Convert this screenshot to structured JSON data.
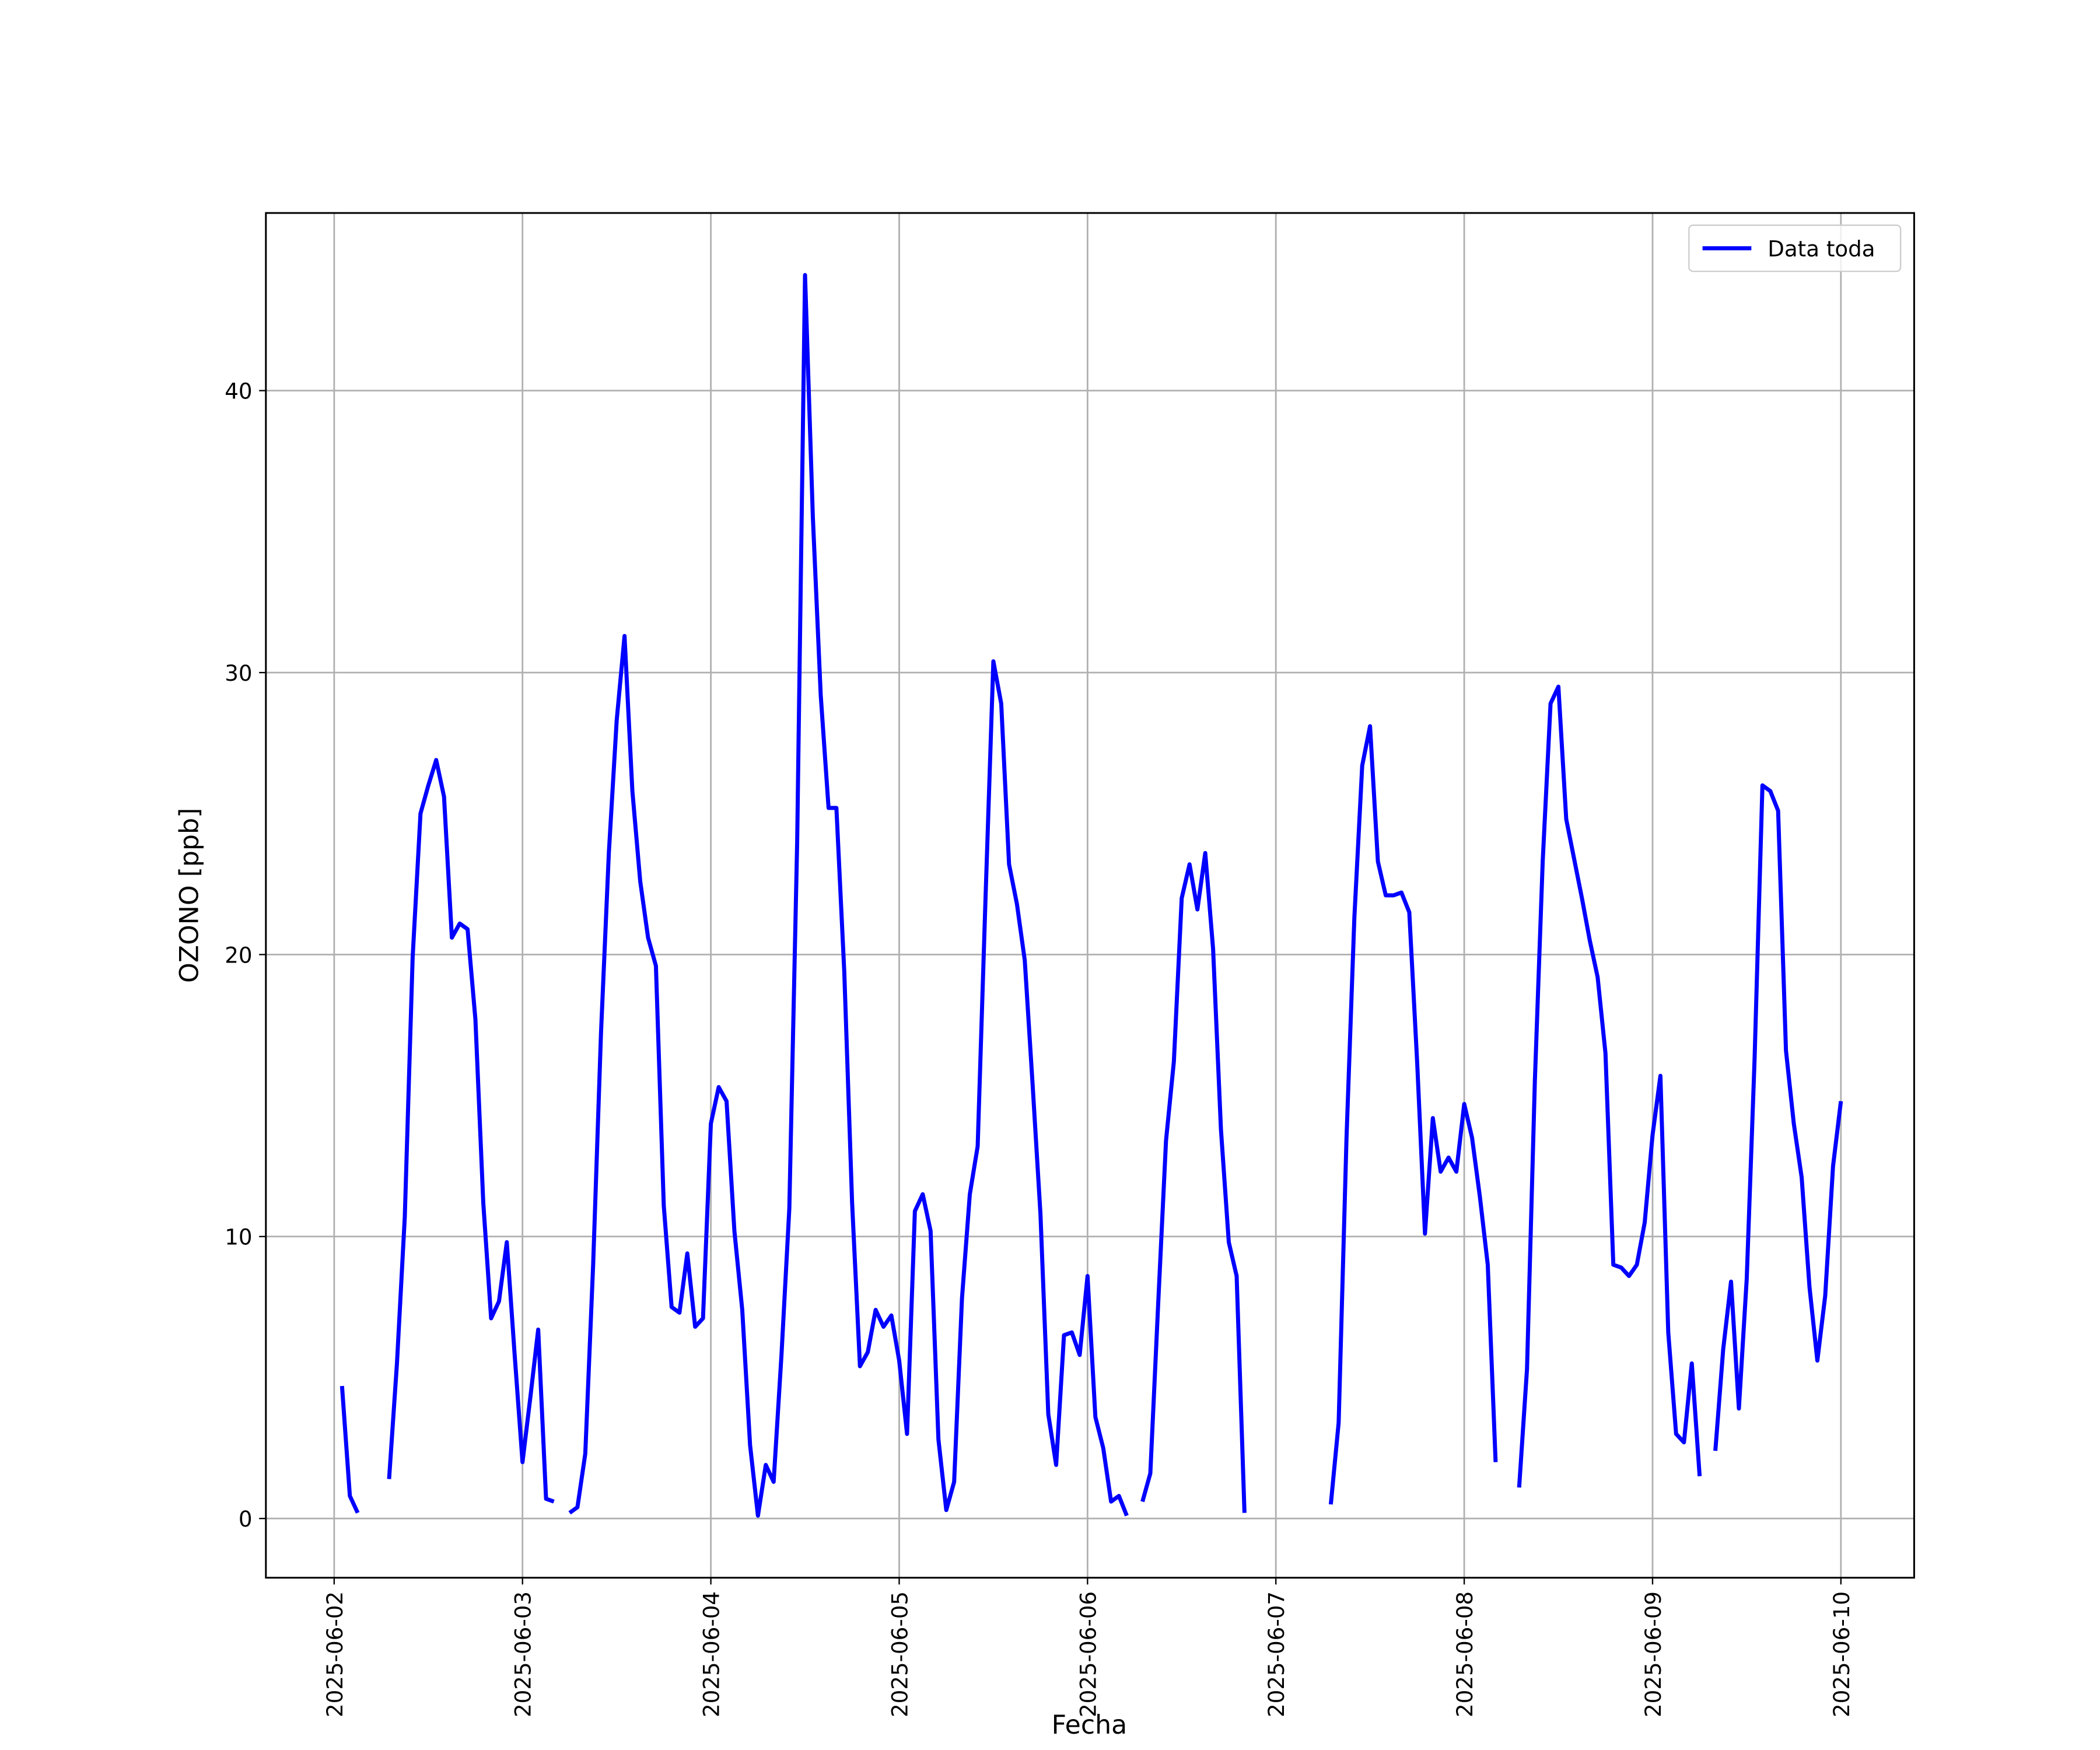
{
  "chart_data": {
    "type": "line",
    "xlabel": "Fecha",
    "ylabel": "OZONO [ppb]",
    "x": [
      "2025-06-02 01:00",
      "2025-06-02 02:00",
      "2025-06-02 03:00",
      "2025-06-02 04:00",
      "2025-06-02 05:00",
      "2025-06-02 06:00",
      "2025-06-02 07:00",
      "2025-06-02 08:00",
      "2025-06-02 09:00",
      "2025-06-02 10:00",
      "2025-06-02 11:00",
      "2025-06-02 12:00",
      "2025-06-02 13:00",
      "2025-06-02 14:00",
      "2025-06-02 15:00",
      "2025-06-02 16:00",
      "2025-06-02 17:00",
      "2025-06-02 18:00",
      "2025-06-02 19:00",
      "2025-06-02 20:00",
      "2025-06-02 21:00",
      "2025-06-02 22:00",
      "2025-06-02 23:00",
      "2025-06-03 00:00",
      "2025-06-03 01:00",
      "2025-06-03 02:00",
      "2025-06-03 03:00",
      "2025-06-03 04:00",
      "2025-06-03 05:00",
      "2025-06-03 06:00",
      "2025-06-03 07:00",
      "2025-06-03 08:00",
      "2025-06-03 09:00",
      "2025-06-03 10:00",
      "2025-06-03 11:00",
      "2025-06-03 12:00",
      "2025-06-03 13:00",
      "2025-06-03 14:00",
      "2025-06-03 15:00",
      "2025-06-03 16:00",
      "2025-06-03 17:00",
      "2025-06-03 18:00",
      "2025-06-03 19:00",
      "2025-06-03 20:00",
      "2025-06-03 21:00",
      "2025-06-03 22:00",
      "2025-06-03 23:00",
      "2025-06-04 00:00",
      "2025-06-04 01:00",
      "2025-06-04 02:00",
      "2025-06-04 03:00",
      "2025-06-04 04:00",
      "2025-06-04 05:00",
      "2025-06-04 06:00",
      "2025-06-04 07:00",
      "2025-06-04 08:00",
      "2025-06-04 09:00",
      "2025-06-04 10:00",
      "2025-06-04 11:00",
      "2025-06-04 12:00",
      "2025-06-04 13:00",
      "2025-06-04 14:00",
      "2025-06-04 15:00",
      "2025-06-04 16:00",
      "2025-06-04 17:00",
      "2025-06-04 18:00",
      "2025-06-04 19:00",
      "2025-06-04 20:00",
      "2025-06-04 21:00",
      "2025-06-04 22:00",
      "2025-06-04 23:00",
      "2025-06-05 00:00",
      "2025-06-05 01:00",
      "2025-06-05 02:00",
      "2025-06-05 03:00",
      "2025-06-05 04:00",
      "2025-06-05 05:00",
      "2025-06-05 06:00",
      "2025-06-05 07:00",
      "2025-06-05 08:00",
      "2025-06-05 09:00",
      "2025-06-05 10:00",
      "2025-06-05 11:00",
      "2025-06-05 12:00",
      "2025-06-05 13:00",
      "2025-06-05 14:00",
      "2025-06-05 15:00",
      "2025-06-05 16:00",
      "2025-06-05 17:00",
      "2025-06-05 18:00",
      "2025-06-05 19:00",
      "2025-06-05 20:00",
      "2025-06-05 21:00",
      "2025-06-05 22:00",
      "2025-06-05 23:00",
      "2025-06-06 00:00",
      "2025-06-06 01:00",
      "2025-06-06 02:00",
      "2025-06-06 03:00",
      "2025-06-06 04:00",
      "2025-06-06 05:00",
      "2025-06-06 06:00",
      "2025-06-06 07:00",
      "2025-06-06 08:00",
      "2025-06-06 09:00",
      "2025-06-06 10:00",
      "2025-06-06 11:00",
      "2025-06-06 12:00",
      "2025-06-06 13:00",
      "2025-06-06 14:00",
      "2025-06-06 15:00",
      "2025-06-06 16:00",
      "2025-06-06 17:00",
      "2025-06-06 18:00",
      "2025-06-06 19:00",
      "2025-06-06 20:00",
      "2025-06-06 21:00",
      "2025-06-06 22:00",
      "2025-06-06 23:00",
      "2025-06-07 00:00",
      "2025-06-07 01:00",
      "2025-06-07 02:00",
      "2025-06-07 03:00",
      "2025-06-07 04:00",
      "2025-06-07 05:00",
      "2025-06-07 06:00",
      "2025-06-07 07:00",
      "2025-06-07 08:00",
      "2025-06-07 09:00",
      "2025-06-07 10:00",
      "2025-06-07 11:00",
      "2025-06-07 12:00",
      "2025-06-07 13:00",
      "2025-06-07 14:00",
      "2025-06-07 15:00",
      "2025-06-07 16:00",
      "2025-06-07 17:00",
      "2025-06-07 18:00",
      "2025-06-07 19:00",
      "2025-06-07 20:00",
      "2025-06-07 21:00",
      "2025-06-07 22:00",
      "2025-06-07 23:00",
      "2025-06-08 00:00",
      "2025-06-08 01:00",
      "2025-06-08 02:00",
      "2025-06-08 03:00",
      "2025-06-08 04:00",
      "2025-06-08 05:00",
      "2025-06-08 06:00",
      "2025-06-08 07:00",
      "2025-06-08 08:00",
      "2025-06-08 09:00",
      "2025-06-08 10:00",
      "2025-06-08 11:00",
      "2025-06-08 12:00",
      "2025-06-08 13:00",
      "2025-06-08 14:00",
      "2025-06-08 15:00",
      "2025-06-08 16:00",
      "2025-06-08 17:00",
      "2025-06-08 18:00",
      "2025-06-08 19:00",
      "2025-06-08 20:00",
      "2025-06-08 21:00",
      "2025-06-08 22:00",
      "2025-06-08 23:00",
      "2025-06-09 00:00",
      "2025-06-09 01:00",
      "2025-06-09 02:00",
      "2025-06-09 03:00",
      "2025-06-09 04:00",
      "2025-06-09 05:00",
      "2025-06-09 06:00",
      "2025-06-09 07:00",
      "2025-06-09 08:00",
      "2025-06-09 09:00",
      "2025-06-09 10:00",
      "2025-06-09 11:00",
      "2025-06-09 12:00",
      "2025-06-09 13:00",
      "2025-06-09 14:00",
      "2025-06-09 15:00",
      "2025-06-09 16:00",
      "2025-06-09 17:00",
      "2025-06-09 18:00",
      "2025-06-09 19:00",
      "2025-06-09 20:00",
      "2025-06-09 21:00",
      "2025-06-09 22:00",
      "2025-06-09 23:00",
      "2025-06-10 00:00"
    ],
    "series": [
      {
        "name": "Data toda",
        "color": "#0000ff",
        "values": [
          4.7,
          0.8,
          0.2,
          null,
          null,
          null,
          1.4,
          5.5,
          10.7,
          19.9,
          25.0,
          26.0,
          26.9,
          25.6,
          20.6,
          21.1,
          20.9,
          17.7,
          11.2,
          7.1,
          7.7,
          9.8,
          5.8,
          2.0,
          4.3,
          6.7,
          0.7,
          0.6,
          null,
          0.2,
          0.4,
          2.3,
          9.0,
          17.2,
          23.6,
          28.3,
          31.3,
          25.8,
          22.6,
          20.6,
          19.6,
          11.1,
          7.5,
          7.3,
          9.4,
          6.8,
          7.1,
          14.0,
          15.3,
          14.8,
          10.2,
          7.4,
          2.6,
          0.1,
          1.9,
          1.3,
          5.8,
          11.0,
          24.0,
          44.1,
          35.5,
          29.2,
          25.2,
          25.2,
          19.4,
          11.2,
          5.4,
          5.9,
          7.4,
          6.8,
          7.2,
          5.6,
          3.0,
          10.9,
          11.5,
          10.2,
          2.8,
          0.3,
          1.3,
          7.8,
          11.5,
          13.2,
          22.0,
          30.4,
          28.9,
          23.2,
          21.8,
          19.8,
          15.4,
          10.8,
          3.7,
          1.9,
          6.5,
          6.6,
          5.8,
          8.6,
          3.6,
          2.5,
          0.6,
          0.8,
          0.1,
          null,
          0.6,
          1.6,
          7.6,
          13.4,
          16.2,
          22.0,
          23.2,
          21.6,
          23.6,
          20.2,
          13.8,
          9.8,
          8.6,
          0.2,
          null,
          null,
          null,
          null,
          null,
          null,
          null,
          null,
          null,
          null,
          0.5,
          3.4,
          13.5,
          21.3,
          26.7,
          28.1,
          23.3,
          22.1,
          22.1,
          22.2,
          21.5,
          16.2,
          10.1,
          14.2,
          12.3,
          12.8,
          12.3,
          14.7,
          13.5,
          11.4,
          9.0,
          2.0,
          null,
          null,
          1.1,
          5.3,
          15.5,
          23.3,
          28.9,
          29.5,
          24.8,
          23.4,
          22.0,
          20.5,
          19.2,
          16.5,
          9.0,
          8.9,
          8.6,
          9.0,
          10.5,
          13.6,
          15.7,
          6.6,
          3.0,
          2.7,
          5.5,
          1.5,
          null,
          2.4,
          6.0,
          8.4,
          3.9,
          8.5,
          16.3,
          26.0,
          25.8,
          25.1,
          16.6,
          14.0,
          12.1,
          8.2,
          5.6,
          7.9,
          12.5,
          14.8
        ]
      }
    ],
    "xlim": [
      "2025-06-01 15:18",
      "2025-06-10 09:20"
    ],
    "xticks": [
      "2025-06-02",
      "2025-06-03",
      "2025-06-04",
      "2025-06-05",
      "2025-06-06",
      "2025-06-07",
      "2025-06-08",
      "2025-06-09",
      "2025-06-10"
    ],
    "ylim": [
      -2.1,
      46.3
    ],
    "yticks": [
      0,
      10,
      20,
      30,
      40
    ],
    "grid": true,
    "legend": "upper right"
  }
}
